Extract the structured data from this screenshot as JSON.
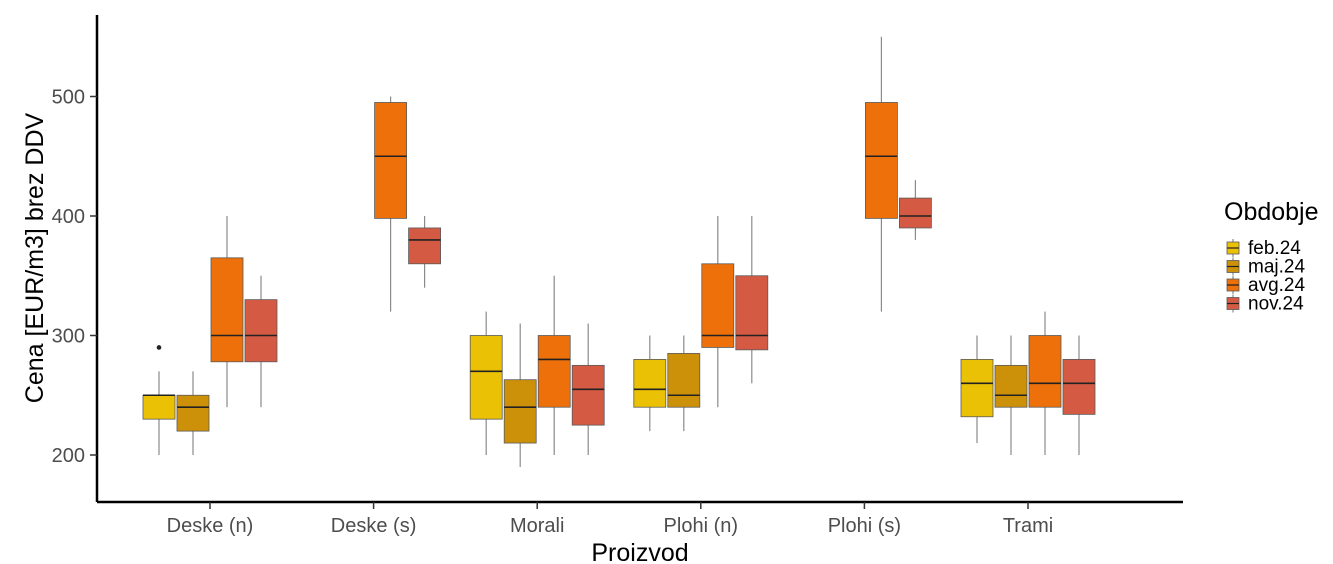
{
  "chart_data": {
    "type": "boxplot",
    "xlabel": "Proizvod",
    "ylabel": "Cena [EUR/m3] brez DDV",
    "ylim": [
      160,
      565
    ],
    "yticks": [
      200,
      300,
      400,
      500
    ],
    "grid": false,
    "legend_position": "right",
    "categories": [
      "Deske (n)",
      "Deske (s)",
      "Morali",
      "Plohi (n)",
      "Plohi (s)",
      "Trami"
    ],
    "legend": {
      "title": "Obdobje",
      "entries": [
        {
          "name": "feb.24",
          "color": "#EBC106"
        },
        {
          "name": "maj.24",
          "color": "#CC9109"
        },
        {
          "name": "avg.24",
          "color": "#ED700A"
        },
        {
          "name": "nov.24",
          "color": "#D45A44"
        }
      ]
    },
    "series": [
      {
        "name": "feb.24",
        "color": "#EBC106",
        "values": [
          {
            "category": "Deske (n)",
            "min": 200,
            "q1": 230,
            "median": 250,
            "q3": 250,
            "max": 270,
            "outliers": [
              290
            ]
          },
          null,
          {
            "category": "Morali",
            "min": 200,
            "q1": 230,
            "median": 270,
            "q3": 300,
            "max": 320,
            "outliers": []
          },
          {
            "category": "Plohi (n)",
            "min": 220,
            "q1": 240,
            "median": 255,
            "q3": 280,
            "max": 300,
            "outliers": []
          },
          null,
          {
            "category": "Trami",
            "min": 210,
            "q1": 232,
            "median": 260,
            "q3": 280,
            "max": 300,
            "outliers": []
          }
        ]
      },
      {
        "name": "maj.24",
        "color": "#CC9109",
        "values": [
          {
            "category": "Deske (n)",
            "min": 200,
            "q1": 220,
            "median": 240,
            "q3": 250,
            "max": 270,
            "outliers": []
          },
          null,
          {
            "category": "Morali",
            "min": 190,
            "q1": 210,
            "median": 240,
            "q3": 263,
            "max": 310,
            "outliers": []
          },
          {
            "category": "Plohi (n)",
            "min": 220,
            "q1": 240,
            "median": 250,
            "q3": 285,
            "max": 300,
            "outliers": []
          },
          null,
          {
            "category": "Trami",
            "min": 200,
            "q1": 240,
            "median": 250,
            "q3": 275,
            "max": 300,
            "outliers": []
          }
        ]
      },
      {
        "name": "avg.24",
        "color": "#ED700A",
        "values": [
          {
            "category": "Deske (n)",
            "min": 240,
            "q1": 278,
            "median": 300,
            "q3": 365,
            "max": 400,
            "outliers": []
          },
          {
            "category": "Deske (s)",
            "min": 320,
            "q1": 398,
            "median": 450,
            "q3": 495,
            "max": 500,
            "outliers": []
          },
          {
            "category": "Morali",
            "min": 200,
            "q1": 240,
            "median": 280,
            "q3": 300,
            "max": 350,
            "outliers": []
          },
          {
            "category": "Plohi (n)",
            "min": 240,
            "q1": 290,
            "median": 300,
            "q3": 360,
            "max": 400,
            "outliers": []
          },
          {
            "category": "Plohi (s)",
            "min": 320,
            "q1": 398,
            "median": 450,
            "q3": 495,
            "max": 550,
            "outliers": []
          },
          {
            "category": "Trami",
            "min": 200,
            "q1": 240,
            "median": 260,
            "q3": 300,
            "max": 320,
            "outliers": []
          }
        ]
      },
      {
        "name": "nov.24",
        "color": "#D45A44",
        "values": [
          {
            "category": "Deske (n)",
            "min": 240,
            "q1": 278,
            "median": 300,
            "q3": 330,
            "max": 350,
            "outliers": []
          },
          {
            "category": "Deske (s)",
            "min": 340,
            "q1": 360,
            "median": 380,
            "q3": 390,
            "max": 400,
            "outliers": []
          },
          {
            "category": "Morali",
            "min": 200,
            "q1": 225,
            "median": 255,
            "q3": 275,
            "max": 310,
            "outliers": []
          },
          {
            "category": "Plohi (n)",
            "min": 260,
            "q1": 288,
            "median": 300,
            "q3": 350,
            "max": 400,
            "outliers": []
          },
          {
            "category": "Plohi (s)",
            "min": 380,
            "q1": 390,
            "median": 400,
            "q3": 415,
            "max": 430,
            "outliers": []
          },
          {
            "category": "Trami",
            "min": 200,
            "q1": 234,
            "median": 260,
            "q3": 280,
            "max": 300,
            "outliers": []
          }
        ]
      }
    ]
  }
}
